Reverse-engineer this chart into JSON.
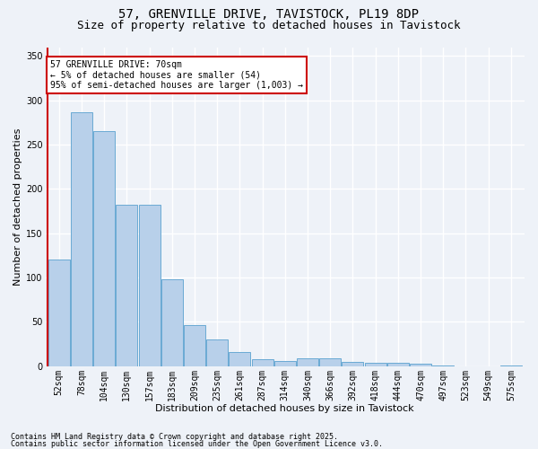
{
  "title_line1": "57, GRENVILLE DRIVE, TAVISTOCK, PL19 8DP",
  "title_line2": "Size of property relative to detached houses in Tavistock",
  "xlabel": "Distribution of detached houses by size in Tavistock",
  "ylabel": "Number of detached properties",
  "bar_color": "#b8d0ea",
  "bar_edge_color": "#6aaad4",
  "categories": [
    "52sqm",
    "78sqm",
    "104sqm",
    "130sqm",
    "157sqm",
    "183sqm",
    "209sqm",
    "235sqm",
    "261sqm",
    "287sqm",
    "314sqm",
    "340sqm",
    "366sqm",
    "392sqm",
    "418sqm",
    "444sqm",
    "470sqm",
    "497sqm",
    "523sqm",
    "549sqm",
    "575sqm"
  ],
  "values": [
    120,
    287,
    265,
    182,
    182,
    98,
    46,
    30,
    16,
    8,
    6,
    9,
    9,
    5,
    4,
    4,
    3,
    1,
    0,
    0,
    1
  ],
  "ylim": [
    0,
    360
  ],
  "yticks": [
    0,
    50,
    100,
    150,
    200,
    250,
    300,
    350
  ],
  "vline_color": "#cc0000",
  "annotation_text": "57 GRENVILLE DRIVE: 70sqm\n← 5% of detached houses are smaller (54)\n95% of semi-detached houses are larger (1,003) →",
  "annotation_box_color": "#ffffff",
  "annotation_box_edge_color": "#cc0000",
  "footer_line1": "Contains HM Land Registry data © Crown copyright and database right 2025.",
  "footer_line2": "Contains public sector information licensed under the Open Government Licence v3.0.",
  "background_color": "#eef2f8",
  "grid_color": "#ffffff",
  "title_fontsize": 10,
  "subtitle_fontsize": 9,
  "axis_label_fontsize": 8,
  "tick_fontsize": 7,
  "annotation_fontsize": 7,
  "footer_fontsize": 6
}
